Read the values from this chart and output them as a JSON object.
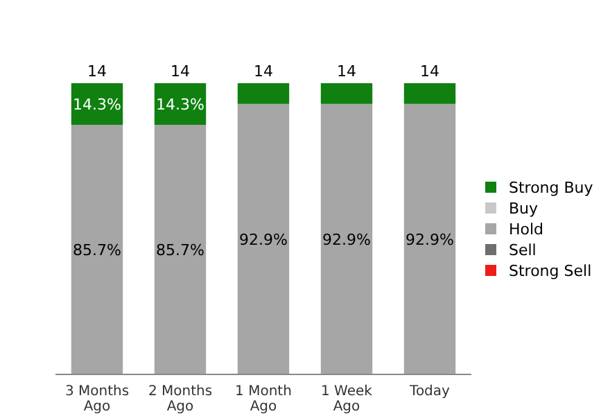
{
  "chart_data": {
    "type": "bar",
    "stacked": true,
    "categories": [
      "3 Months Ago",
      "2 Months Ago",
      "1 Month Ago",
      "1 Week Ago",
      "Today"
    ],
    "series": [
      {
        "name": "Strong Sell",
        "color": "#ee1c1c",
        "values": [
          0,
          0,
          0,
          0,
          0
        ]
      },
      {
        "name": "Sell",
        "color": "#6e6e6e",
        "values": [
          0,
          0,
          0,
          0,
          0
        ]
      },
      {
        "name": "Hold",
        "color": "#a6a6a6",
        "values": [
          85.7,
          85.7,
          92.9,
          92.9,
          92.9
        ],
        "value_labels": [
          "85.7%",
          "85.7%",
          "92.9%",
          "92.9%",
          "92.9%"
        ]
      },
      {
        "name": "Buy",
        "color": "#c8c8c8",
        "values": [
          0,
          0,
          0,
          0,
          0
        ]
      },
      {
        "name": "Strong Buy",
        "color": "#108010",
        "values": [
          14.3,
          14.3,
          7.1,
          7.1,
          7.1
        ],
        "value_labels": [
          "14.3%",
          "14.3%",
          null,
          null,
          null
        ]
      }
    ],
    "annotations": [
      {
        "text": "14",
        "x": "3 Months Ago",
        "y": 100
      },
      {
        "text": "14",
        "x": "2 Months Ago",
        "y": 100
      },
      {
        "text": "14",
        "x": "1 Month Ago",
        "y": 100
      },
      {
        "text": "14",
        "x": "1 Week Ago",
        "y": 100
      },
      {
        "text": "14",
        "x": "Today",
        "y": 100
      }
    ],
    "legend": "right"
  }
}
